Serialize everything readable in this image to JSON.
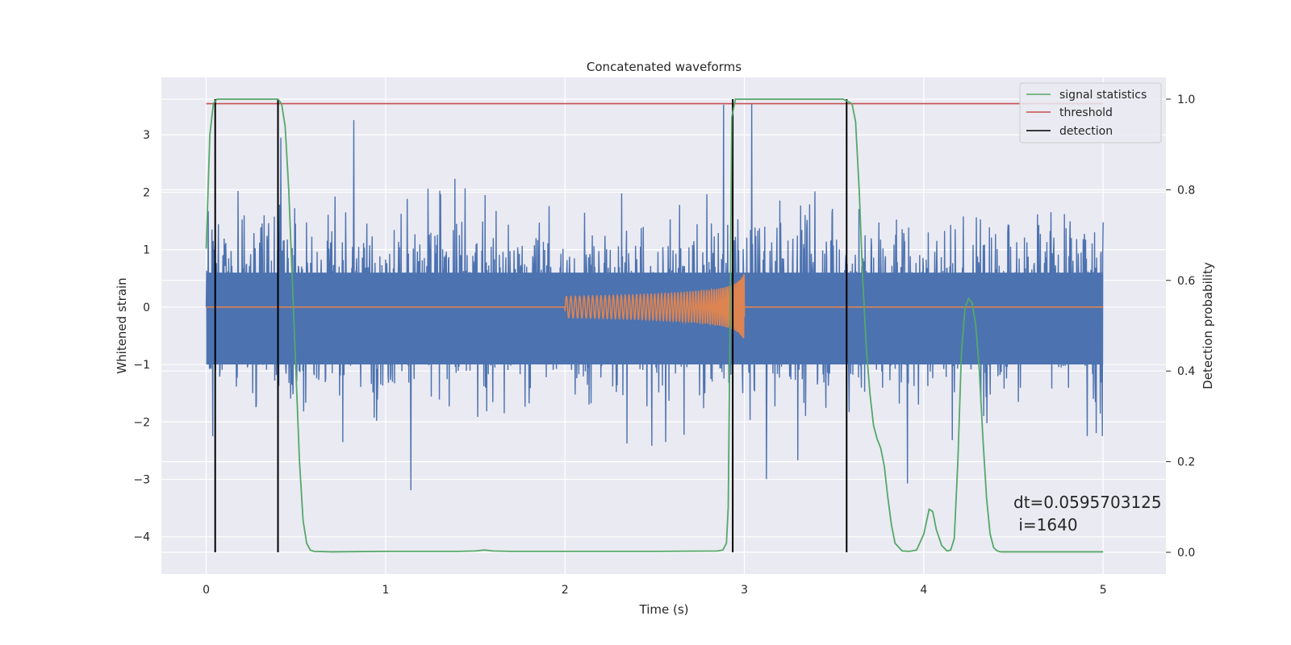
{
  "chart_data": {
    "type": "line",
    "title": "Concatenated waveforms",
    "xlabel": "Time (s)",
    "ylabel": "Whitened strain",
    "y2label": "Detection probability",
    "xlim": [
      -0.25,
      5.35
    ],
    "ylim": [
      -4.65,
      4.0
    ],
    "y2lim": [
      -0.048,
      1.048
    ],
    "x_ticks": [
      0,
      1,
      2,
      3,
      4,
      5
    ],
    "y_ticks": [
      -4,
      -3,
      -2,
      -1,
      0,
      1,
      2,
      3
    ],
    "y2_ticks": [
      0.0,
      0.2,
      0.4,
      0.6,
      0.8,
      1.0
    ],
    "grid": true,
    "legend_position": "top-right",
    "colors": {
      "strain": "#4c72b0",
      "template": "#dd8452",
      "signal_statistics": "#55a868",
      "threshold": "#c44e52",
      "detection": "#000000",
      "plot_background": "#eaeaf2",
      "grid": "#ffffff"
    },
    "series": [
      {
        "name": "signal statistics",
        "axis": "right",
        "x": [
          0,
          0.02,
          0.04,
          0.06,
          0.08,
          0.12,
          0.2,
          0.4,
          0.42,
          0.44,
          0.46,
          0.48,
          0.5,
          0.52,
          0.54,
          0.56,
          0.58,
          0.6,
          0.7,
          1.0,
          1.4,
          1.5,
          1.55,
          1.6,
          1.7,
          2.0,
          2.5,
          2.85,
          2.88,
          2.9,
          2.91,
          2.92,
          2.93,
          2.95,
          3.0,
          3.3,
          3.55,
          3.6,
          3.62,
          3.64,
          3.66,
          3.68,
          3.7,
          3.72,
          3.74,
          3.76,
          3.78,
          3.8,
          3.82,
          3.84,
          3.88,
          3.92,
          3.96,
          4.0,
          4.03,
          4.05,
          4.07,
          4.1,
          4.13,
          4.15,
          4.17,
          4.19,
          4.21,
          4.23,
          4.25,
          4.27,
          4.29,
          4.31,
          4.33,
          4.35,
          4.37,
          4.39,
          4.41,
          4.43,
          4.45,
          4.5,
          4.6,
          5.0
        ],
        "y": [
          0.67,
          0.92,
          0.99,
          1.0,
          1.0,
          1.0,
          1.0,
          1.0,
          0.99,
          0.94,
          0.8,
          0.6,
          0.4,
          0.2,
          0.07,
          0.02,
          0.005,
          0.002,
          0.001,
          0.002,
          0.002,
          0.003,
          0.005,
          0.003,
          0.002,
          0.002,
          0.002,
          0.003,
          0.005,
          0.02,
          0.1,
          0.5,
          0.96,
          1.0,
          1.0,
          1.0,
          1.0,
          0.99,
          0.95,
          0.8,
          0.6,
          0.45,
          0.35,
          0.28,
          0.25,
          0.23,
          0.19,
          0.12,
          0.06,
          0.02,
          0.003,
          0.002,
          0.005,
          0.04,
          0.095,
          0.09,
          0.05,
          0.015,
          0.003,
          0.005,
          0.03,
          0.2,
          0.44,
          0.54,
          0.56,
          0.55,
          0.5,
          0.4,
          0.25,
          0.12,
          0.04,
          0.01,
          0.003,
          0.001,
          0.001,
          0.001,
          0.001,
          0.001
        ]
      },
      {
        "name": "threshold",
        "axis": "right",
        "x": [
          0,
          5
        ],
        "y": [
          0.99,
          0.99
        ]
      },
      {
        "name": "detection",
        "axis": "right",
        "type": "vlines",
        "x": [
          0.05,
          0.4,
          2.935,
          3.57
        ],
        "y_range": [
          0.0,
          1.0
        ]
      }
    ]
  },
  "legend": {
    "items": [
      "signal statistics",
      "threshold",
      "detection"
    ]
  },
  "annotation": {
    "line1": "dt=0.0595703125",
    "line2": " i=1640"
  }
}
